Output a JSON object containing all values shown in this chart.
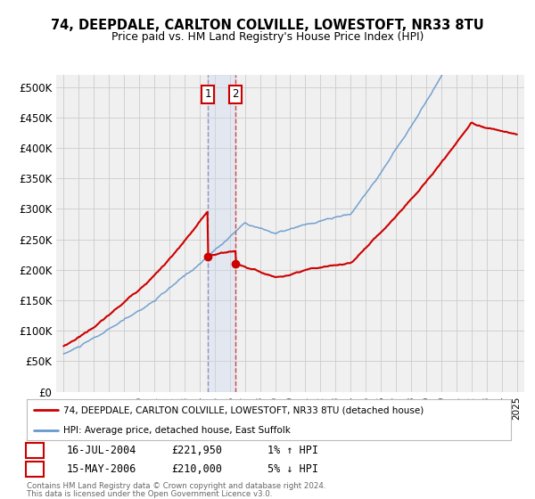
{
  "title": "74, DEEPDALE, CARLTON COLVILLE, LOWESTOFT, NR33 8TU",
  "subtitle": "Price paid vs. HM Land Registry's House Price Index (HPI)",
  "legend_label1": "74, DEEPDALE, CARLTON COLVILLE, LOWESTOFT, NR33 8TU (detached house)",
  "legend_label2": "HPI: Average price, detached house, East Suffolk",
  "transaction1_date": "16-JUL-2004",
  "transaction1_price": "£221,950",
  "transaction1_hpi": "1% ↑ HPI",
  "transaction2_date": "15-MAY-2006",
  "transaction2_price": "£210,000",
  "transaction2_hpi": "5% ↓ HPI",
  "sale1_year": 2004.54,
  "sale1_price": 221950,
  "sale2_year": 2006.37,
  "sale2_price": 210000,
  "footnote1": "Contains HM Land Registry data © Crown copyright and database right 2024.",
  "footnote2": "This data is licensed under the Open Government Licence v3.0.",
  "line1_color": "#cc0000",
  "line2_color": "#6699cc",
  "marker_color": "#cc0000",
  "grid_color": "#cccccc",
  "background_color": "#f0f0f0",
  "shade_color": "#ccd9ee",
  "vline1_color": "#8888bb",
  "vline2_color": "#cc3333"
}
